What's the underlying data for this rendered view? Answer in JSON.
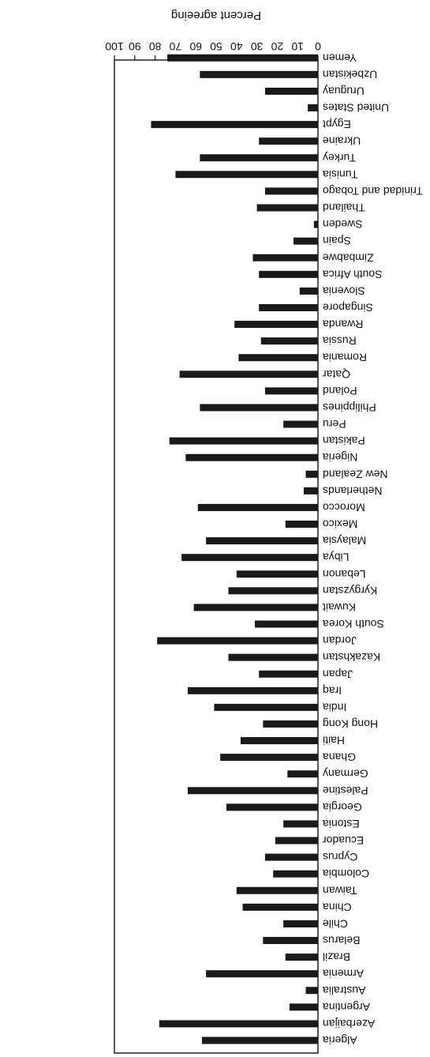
{
  "chart_data": {
    "type": "bar",
    "orientation": "horizontal",
    "ylabel": "Percent agreeing",
    "xlim": [
      0,
      100
    ],
    "ticks": [
      0,
      10,
      20,
      30,
      40,
      50,
      60,
      70,
      80,
      90,
      100
    ],
    "grid": false,
    "bar_color": "#1a1a1a",
    "categories": [
      "Algeria",
      "Azerbaijan",
      "Argentina",
      "Australia",
      "Armenia",
      "Brazil",
      "Belarus",
      "Chile",
      "China",
      "Taiwan",
      "Colombia",
      "Cyprus",
      "Ecuador",
      "Estonia",
      "Georgia",
      "Palestine",
      "Germany",
      "Ghana",
      "Haiti",
      "Hong Kong",
      "India",
      "Iraq",
      "Japan",
      "Kazakhstan",
      "Jordan",
      "South Korea",
      "Kuwait",
      "Kyrgyzstan",
      "Lebanon",
      "Libya",
      "Malaysia",
      "Mexico",
      "Morocco",
      "Netherlands",
      "New Zealand",
      "Nigeria",
      "Pakistan",
      "Peru",
      "Philippines",
      "Poland",
      "Qatar",
      "Romania",
      "Russia",
      "Rwanda",
      "Singapore",
      "Slovenia",
      "South Africa",
      "Zimbabwe",
      "Spain",
      "Sweden",
      "Thailand",
      "Trinidad and Tobago",
      "Tunisia",
      "Turkey",
      "Ukraine",
      "Egypt",
      "United States",
      "Uruguay",
      "Uzbekistan",
      "Yemen"
    ],
    "values": [
      57,
      78,
      14,
      6,
      55,
      16,
      27,
      17,
      37,
      40,
      22,
      26,
      21,
      17,
      45,
      64,
      15,
      48,
      38,
      27,
      51,
      64,
      29,
      44,
      79,
      31,
      61,
      44,
      40,
      67,
      55,
      16,
      59,
      7,
      6,
      65,
      73,
      17,
      58,
      26,
      68,
      39,
      28,
      41,
      29,
      9,
      29,
      32,
      12,
      2,
      30,
      26,
      70,
      58,
      29,
      82,
      5,
      26,
      58,
      74
    ]
  }
}
